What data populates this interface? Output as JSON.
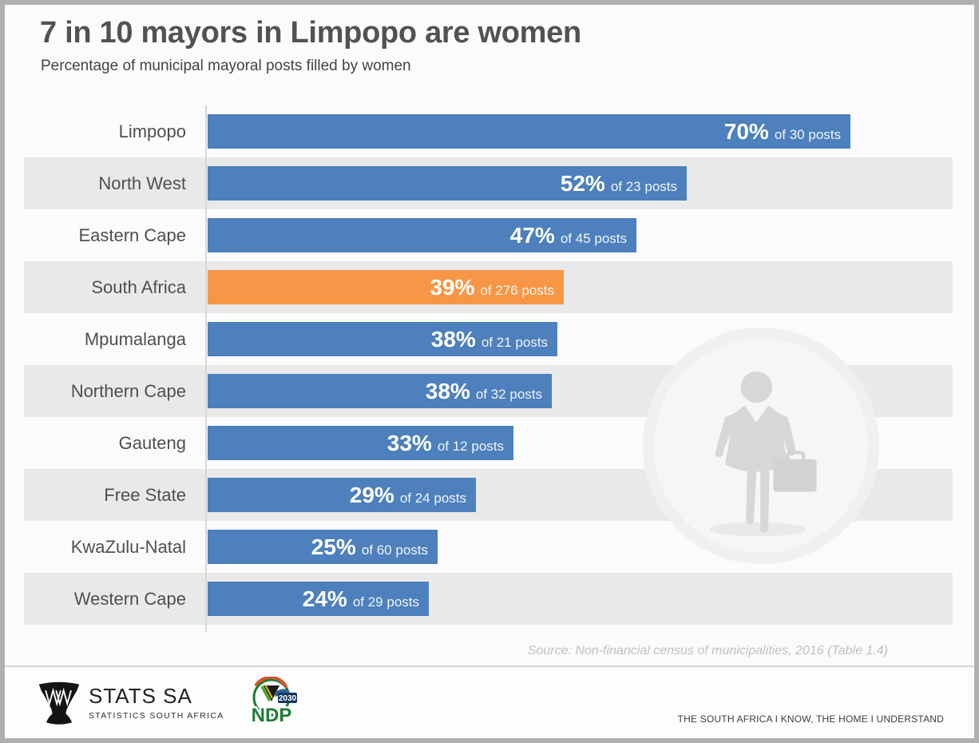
{
  "header": {
    "title": "7 in 10 mayors in Limpopo are women",
    "subtitle": "Percentage of municipal mayoral posts filled by women"
  },
  "chart_data": {
    "type": "bar",
    "orientation": "horizontal",
    "value_unit": "percent",
    "xlim": [
      0,
      100
    ],
    "grid": false,
    "legend": false,
    "bar_color": "#4d80bc",
    "highlight_color": "#f79646",
    "stripe_color": "#e9e9ea",
    "title": "7 in 10 mayors in Limpopo are women",
    "subtitle": "Percentage of municipal mayoral posts filled by women",
    "categories": [
      "Limpopo",
      "North West",
      "Eastern Cape",
      "South Africa",
      "Mpumalanga",
      "Northern Cape",
      "Gauteng",
      "Free State",
      "KwaZulu-Natal",
      "Western Cape"
    ],
    "values": [
      70.0,
      52.2,
      46.7,
      38.8,
      38.1,
      37.5,
      33.3,
      29.2,
      25.0,
      24.1
    ],
    "rows": [
      {
        "label": "Limpopo",
        "pct_label": "70%",
        "posts_label": "of 30 posts",
        "value": 70.0,
        "total_posts": 30,
        "highlight": false
      },
      {
        "label": "North West",
        "pct_label": "52%",
        "posts_label": "of 23 posts",
        "value": 52.2,
        "total_posts": 23,
        "highlight": false
      },
      {
        "label": "Eastern Cape",
        "pct_label": "47%",
        "posts_label": "of 45 posts",
        "value": 46.7,
        "total_posts": 45,
        "highlight": false
      },
      {
        "label": "South Africa",
        "pct_label": "39%",
        "posts_label": "of 276 posts",
        "value": 38.8,
        "total_posts": 276,
        "highlight": true
      },
      {
        "label": "Mpumalanga",
        "pct_label": "38%",
        "posts_label": "of 21 posts",
        "value": 38.1,
        "total_posts": 21,
        "highlight": false
      },
      {
        "label": "Northern Cape",
        "pct_label": "38%",
        "posts_label": "of 32 posts",
        "value": 37.5,
        "total_posts": 32,
        "highlight": false
      },
      {
        "label": "Gauteng",
        "pct_label": "33%",
        "posts_label": "of 12 posts",
        "value": 33.3,
        "total_posts": 12,
        "highlight": false
      },
      {
        "label": "Free State",
        "pct_label": "29%",
        "posts_label": "of 24 posts",
        "value": 29.2,
        "total_posts": 24,
        "highlight": false
      },
      {
        "label": "KwaZulu-Natal",
        "pct_label": "25%",
        "posts_label": "of 60 posts",
        "value": 25.0,
        "total_posts": 60,
        "highlight": false
      },
      {
        "label": "Western Cape",
        "pct_label": "24%",
        "posts_label": "of 29 posts",
        "value": 24.1,
        "total_posts": 29,
        "highlight": false
      }
    ],
    "source": "Source: Non-financial census of municipalities, 2016 (Table 1.4)"
  },
  "footer": {
    "stats_sa_name": "STATS SA",
    "stats_sa_subtitle": "STATISTICS SOUTH AFRICA",
    "ndp_name": "NDP",
    "ndp_year": "2030",
    "slogan": "THE SOUTH AFRICA I KNOW, THE HOME I UNDERSTAND"
  }
}
